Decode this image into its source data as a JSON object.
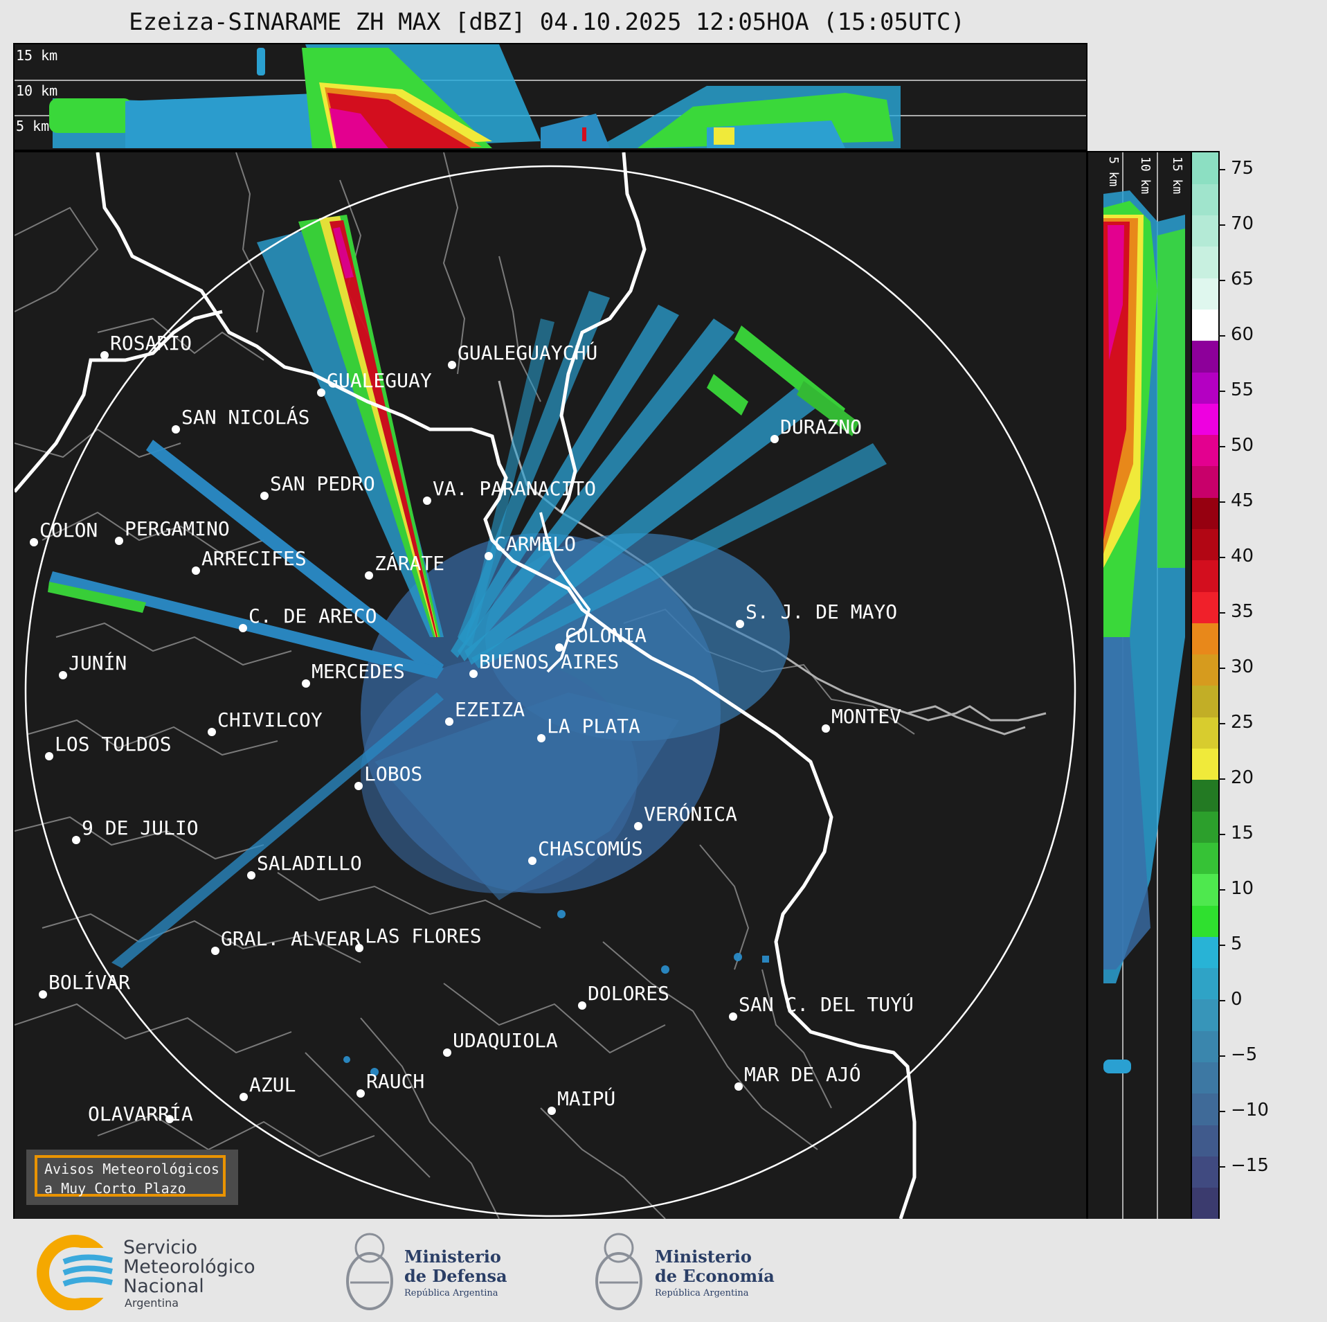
{
  "title": "Ezeiza-SINARAME ZH MAX [dBZ] 04.10.2025 12:05HOA (15:05UTC)",
  "height_labels_top": [
    "15 km",
    "10 km",
    "5 km"
  ],
  "height_labels_side": [
    "5 km",
    "10 km",
    "15 km"
  ],
  "colorbar": {
    "ticks": [
      "75",
      "70",
      "65",
      "60",
      "55",
      "50",
      "45",
      "40",
      "35",
      "30",
      "25",
      "20",
      "15",
      "10",
      "5",
      "0",
      "−5",
      "−10",
      "−15"
    ],
    "colors": [
      "#3b3b6e",
      "#404a80",
      "#405a8c",
      "#3f6a98",
      "#3d78a3",
      "#3a86ad",
      "#3795b9",
      "#2fa3c6",
      "#28b3d6",
      "#2fe02f",
      "#4ee84e",
      "#36c236",
      "#2c9f2c",
      "#237a23",
      "#f0ea3a",
      "#d8cc2e",
      "#c2ae26",
      "#d69b1e",
      "#e8881a",
      "#f0202a",
      "#d30e1e",
      "#b20614",
      "#960010",
      "#c8006a",
      "#e3008f",
      "#ee00e0",
      "#b400c2",
      "#8d009a",
      "#ffffff",
      "#dff7ee",
      "#c8f0e0",
      "#b4ead6",
      "#a0e4cc",
      "#8cdfc2"
    ]
  },
  "cities": [
    {
      "name": "ROSARIO"
    },
    {
      "name": "GUALEGUAYCHÚ"
    },
    {
      "name": "GUALEGUAY"
    },
    {
      "name": "SAN NICOLÁS"
    },
    {
      "name": "DURAZNO"
    },
    {
      "name": "SAN PEDRO"
    },
    {
      "name": "VA. PARANACITO"
    },
    {
      "name": "COLON"
    },
    {
      "name": "PERGAMINO"
    },
    {
      "name": "CARMELO"
    },
    {
      "name": "ARRECIFES"
    },
    {
      "name": "ZÁRATE"
    },
    {
      "name": "S. J. DE MAYO"
    },
    {
      "name": "C. DE ARECO"
    },
    {
      "name": "COLONIA"
    },
    {
      "name": "JUNÍN"
    },
    {
      "name": "BUENOS AIRES"
    },
    {
      "name": "MERCEDES"
    },
    {
      "name": "MONTEV"
    },
    {
      "name": "CHIVILCOY"
    },
    {
      "name": "EZEIZA"
    },
    {
      "name": "LA PLATA"
    },
    {
      "name": "LOS TOLDOS"
    },
    {
      "name": "LOBOS"
    },
    {
      "name": "VERÓNICA"
    },
    {
      "name": "9 DE JULIO"
    },
    {
      "name": "CHASCOMÚS"
    },
    {
      "name": "SALADILLO"
    },
    {
      "name": "GRAL. ALVEAR"
    },
    {
      "name": "LAS FLORES"
    },
    {
      "name": "BOLÍVAR"
    },
    {
      "name": "DOLORES"
    },
    {
      "name": "SAN C. DEL TUYÚ"
    },
    {
      "name": "UDAQUIOLA"
    },
    {
      "name": "MAR DE AJÓ"
    },
    {
      "name": "AZUL"
    },
    {
      "name": "RAUCH"
    },
    {
      "name": "MAIPÚ"
    },
    {
      "name": "OLAVARRÍA"
    }
  ],
  "avisos": {
    "line1": "Avisos Meteorológicos",
    "line2": "a Muy Corto Plazo"
  },
  "footer": {
    "smn": {
      "l1": "Servicio",
      "l2": "Meteorológico",
      "l3": "Nacional",
      "l4": "Argentina"
    },
    "defensa": {
      "l1": "Ministerio",
      "l2": "de Defensa",
      "l3": "República Argentina"
    },
    "economia": {
      "l1": "Ministerio",
      "l2": "de Economía",
      "l3": "República Argentina"
    }
  }
}
